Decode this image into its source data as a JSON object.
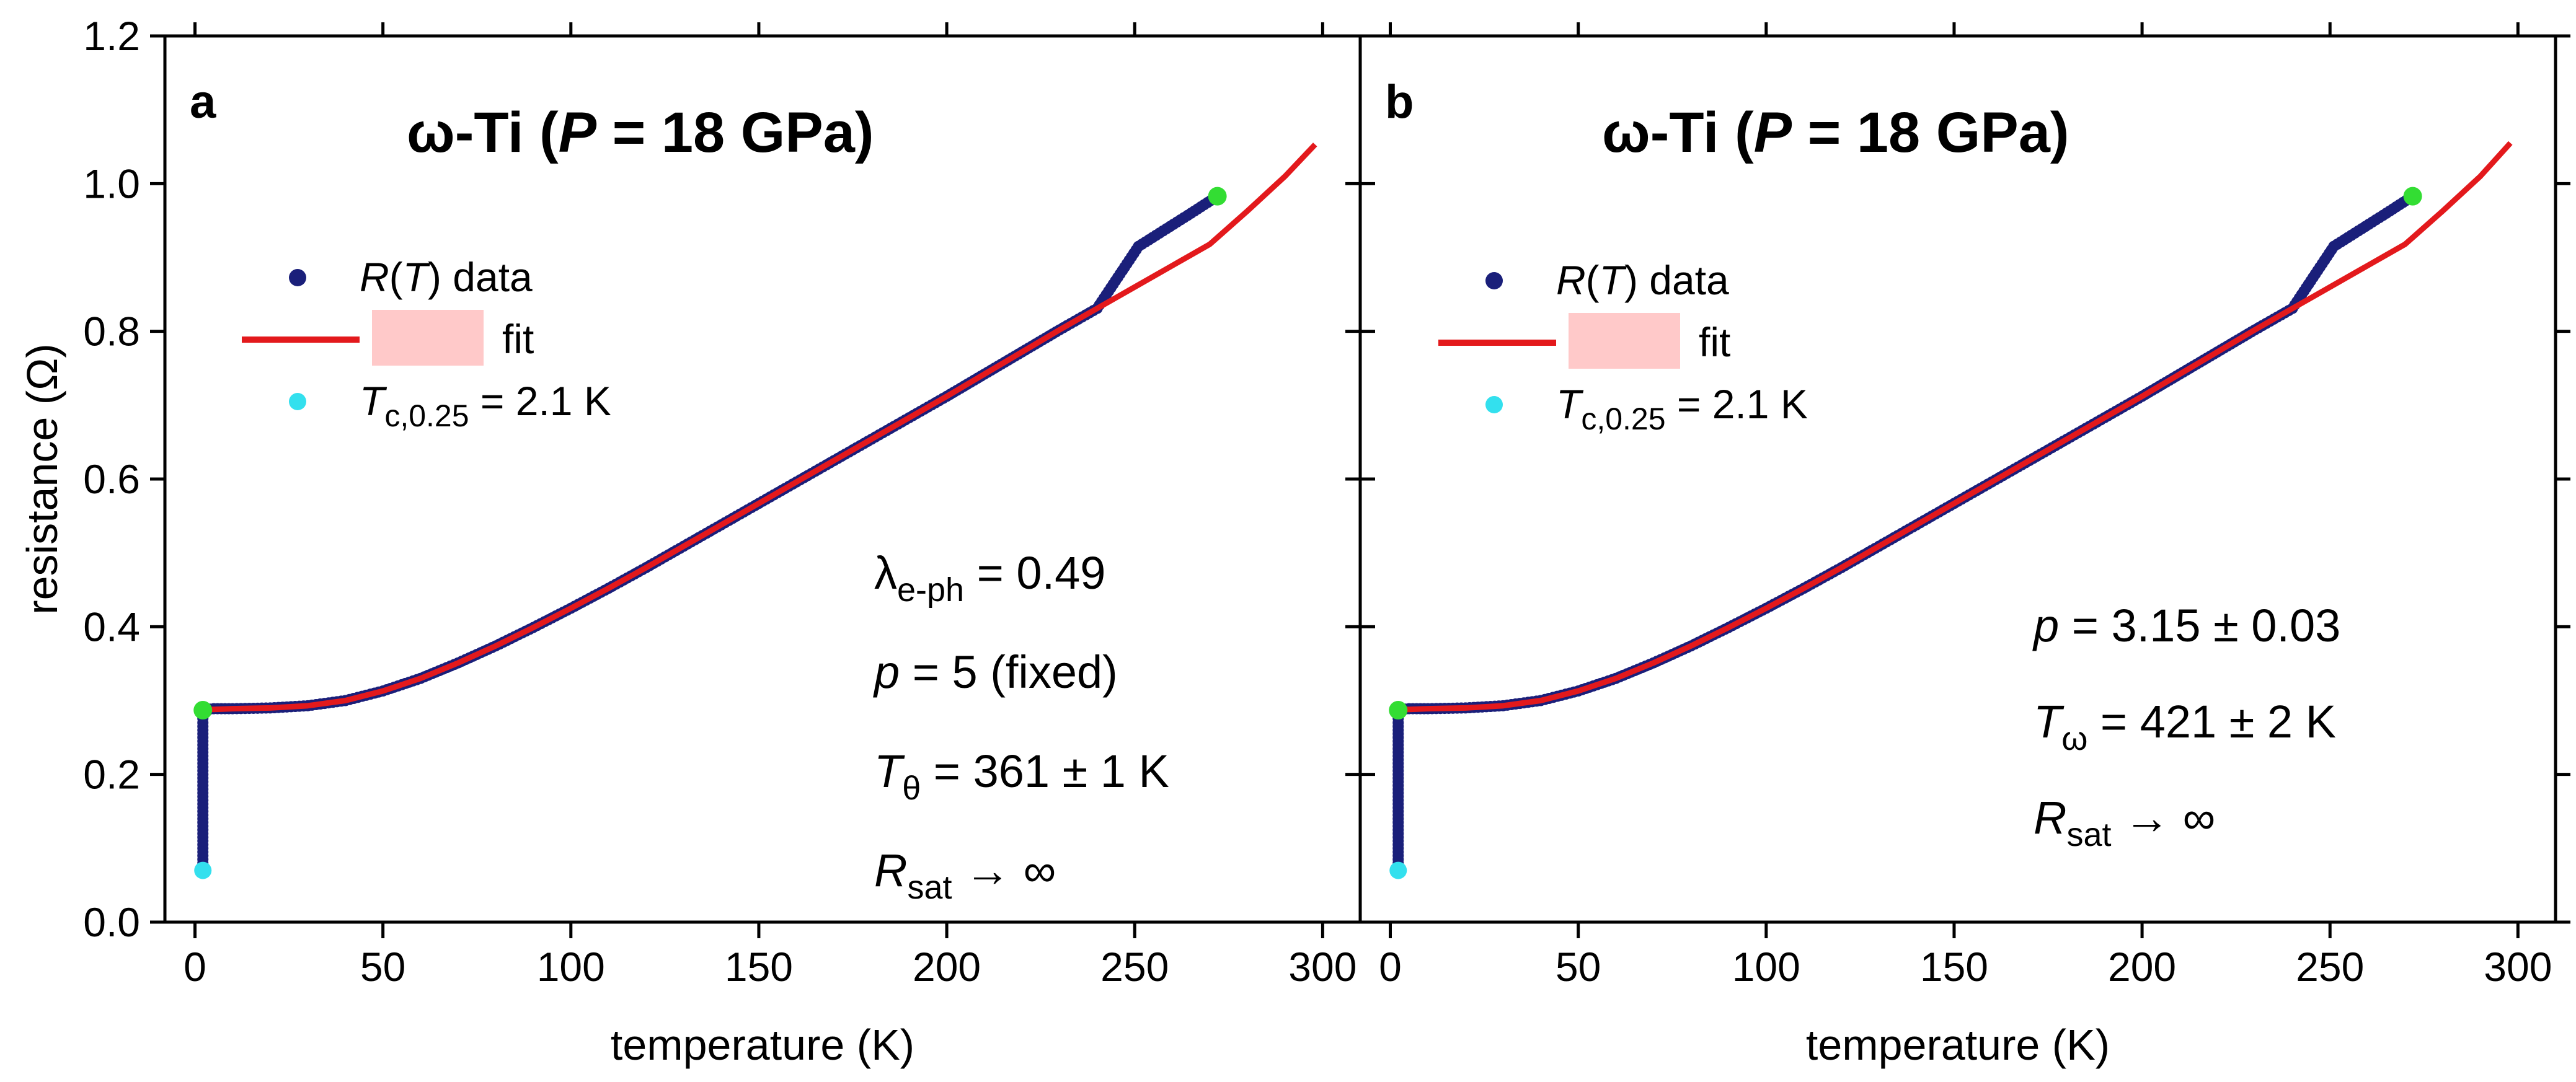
{
  "chart_data": [
    {
      "type": "scatter",
      "panel": "a",
      "title": "ω-Ti (P = 18 GPa)",
      "title_parts": [
        "ω-Ti (",
        "P",
        " = 18 GPa)"
      ],
      "xlabel": "temperature (K)",
      "ylabel": "resistance (Ω)",
      "xlim": [
        -8,
        310
      ],
      "ylim": [
        0.0,
        1.2
      ],
      "xticks": [
        0,
        50,
        100,
        150,
        200,
        250,
        300
      ],
      "xtick_labels": [
        "0",
        "50",
        "100",
        "150",
        "200",
        "250",
        "300"
      ],
      "yticks": [
        0.0,
        0.2,
        0.4,
        0.6,
        0.8,
        1.0,
        1.2
      ],
      "ytick_labels": [
        "0.0",
        "0.2",
        "0.4",
        "0.6",
        "0.8",
        "1.0",
        "1.2"
      ],
      "grid": false,
      "legend_position": "upper-left",
      "legend": [
        {
          "kind": "marker",
          "italic": "R",
          "text": "(T) data",
          "italic2": "T",
          "color": "#1a1f7a"
        },
        {
          "kind": "line",
          "text": "fit",
          "color": "#e3191c",
          "swatch_color": "#ffc9c9"
        },
        {
          "kind": "marker",
          "italic": "T",
          "subscript": "c,0.25",
          "text": " = 2.1 K",
          "color": "#33e0ee"
        }
      ],
      "annotations": [
        {
          "main": "λ",
          "sub": "e-ph",
          "rest": " = 0.49"
        },
        {
          "main": "p",
          "italic": true,
          "sub": "",
          "rest": " = 5 (fixed)"
        },
        {
          "main": "T",
          "italic": true,
          "sub": "θ",
          "rest": " = 361 ± 1 K"
        },
        {
          "main": "R",
          "italic": true,
          "sub": "sat",
          "rest": " → ∞"
        }
      ],
      "series": [
        {
          "name": "R(T) data",
          "color": "#1a1f7a",
          "x": [
            2.1,
            2.1,
            2.1,
            2.1,
            2.1,
            2.1,
            2.1,
            2.1,
            2.1,
            3,
            5,
            10,
            20,
            30,
            40,
            50,
            60,
            70,
            80,
            90,
            100,
            110,
            120,
            130,
            140,
            150,
            160,
            170,
            180,
            190,
            200,
            210,
            220,
            230,
            240,
            251,
            265,
            272
          ],
          "y": [
            0.07,
            0.1,
            0.13,
            0.16,
            0.19,
            0.22,
            0.25,
            0.27,
            0.287,
            0.288,
            0.289,
            0.289,
            0.29,
            0.293,
            0.3,
            0.313,
            0.33,
            0.351,
            0.374,
            0.399,
            0.425,
            0.452,
            0.48,
            0.509,
            0.538,
            0.567,
            0.596,
            0.625,
            0.654,
            0.683,
            0.712,
            0.742,
            0.772,
            0.802,
            0.831,
            0.915,
            0.96,
            0.983
          ]
        },
        {
          "name": "fit",
          "color": "#e3191c",
          "x": [
            2,
            5,
            10,
            20,
            30,
            40,
            50,
            60,
            70,
            80,
            90,
            100,
            110,
            120,
            130,
            140,
            150,
            160,
            170,
            180,
            190,
            200,
            210,
            220,
            230,
            240,
            250,
            260,
            270,
            280,
            290,
            298
          ],
          "y": [
            0.288,
            0.288,
            0.289,
            0.29,
            0.293,
            0.3,
            0.313,
            0.33,
            0.351,
            0.374,
            0.399,
            0.425,
            0.452,
            0.48,
            0.509,
            0.538,
            0.567,
            0.596,
            0.625,
            0.654,
            0.683,
            0.712,
            0.742,
            0.772,
            0.802,
            0.831,
            0.86,
            0.889,
            0.918,
            0.963,
            1.01,
            1.053
          ]
        },
        {
          "name": "Tc,0.25 = 2.1 K",
          "color": "#33e0ee",
          "x": [
            2.1
          ],
          "y": [
            0.07
          ]
        },
        {
          "color": "#33dd33",
          "x": [
            2.1,
            272
          ],
          "y": [
            0.287,
            0.983
          ]
        }
      ]
    },
    {
      "type": "scatter",
      "panel": "b",
      "title": "ω-Ti (P = 18 GPa)",
      "title_parts": [
        "ω-Ti (",
        "P",
        " = 18 GPa)"
      ],
      "xlabel": "temperature (K)",
      "ylabel": "",
      "xlim": [
        -8,
        310
      ],
      "ylim": [
        0.0,
        1.2
      ],
      "xticks": [
        0,
        50,
        100,
        150,
        200,
        250,
        300
      ],
      "xtick_labels": [
        "0",
        "50",
        "100",
        "150",
        "200",
        "250",
        "300"
      ],
      "yticks": [
        0.0,
        0.2,
        0.4,
        0.6,
        0.8,
        1.0,
        1.2
      ],
      "ytick_labels": [],
      "grid": false,
      "legend_position": "upper-left",
      "legend": [
        {
          "kind": "marker",
          "italic": "R",
          "text": "(T) data",
          "italic2": "T",
          "color": "#1a1f7a"
        },
        {
          "kind": "line",
          "text": "fit",
          "color": "#e3191c",
          "swatch_color": "#ffc9c9"
        },
        {
          "kind": "marker",
          "italic": "T",
          "subscript": "c,0.25",
          "text": " = 2.1 K",
          "color": "#33e0ee"
        }
      ],
      "annotations": [
        {
          "main": "p",
          "italic": true,
          "sub": "",
          "rest": " = 3.15  ± 0.03"
        },
        {
          "main": "T",
          "italic": true,
          "sub": "ω",
          "rest": " = 421 ± 2 K"
        },
        {
          "main": "R",
          "italic": true,
          "sub": "sat",
          "rest": " → ∞"
        }
      ],
      "series": [
        {
          "name": "R(T) data",
          "color": "#1a1f7a",
          "x": [
            2.1,
            2.1,
            2.1,
            2.1,
            2.1,
            2.1,
            2.1,
            2.1,
            2.1,
            3,
            5,
            10,
            20,
            30,
            40,
            50,
            60,
            70,
            80,
            90,
            100,
            110,
            120,
            130,
            140,
            150,
            160,
            170,
            180,
            190,
            200,
            210,
            220,
            230,
            240,
            251,
            265,
            272
          ],
          "y": [
            0.07,
            0.1,
            0.13,
            0.16,
            0.19,
            0.22,
            0.25,
            0.27,
            0.287,
            0.288,
            0.289,
            0.289,
            0.29,
            0.293,
            0.3,
            0.313,
            0.33,
            0.351,
            0.374,
            0.399,
            0.425,
            0.452,
            0.48,
            0.509,
            0.538,
            0.567,
            0.596,
            0.625,
            0.654,
            0.683,
            0.712,
            0.742,
            0.772,
            0.802,
            0.831,
            0.915,
            0.96,
            0.983
          ]
        },
        {
          "name": "fit",
          "color": "#e3191c",
          "x": [
            2,
            5,
            10,
            20,
            30,
            40,
            50,
            60,
            70,
            80,
            90,
            100,
            110,
            120,
            130,
            140,
            150,
            160,
            170,
            180,
            190,
            200,
            210,
            220,
            230,
            240,
            250,
            260,
            270,
            280,
            290,
            298
          ],
          "y": [
            0.288,
            0.288,
            0.289,
            0.29,
            0.293,
            0.3,
            0.313,
            0.33,
            0.351,
            0.374,
            0.399,
            0.425,
            0.452,
            0.48,
            0.509,
            0.538,
            0.567,
            0.596,
            0.625,
            0.654,
            0.683,
            0.712,
            0.742,
            0.772,
            0.802,
            0.831,
            0.86,
            0.889,
            0.918,
            0.963,
            1.01,
            1.055
          ]
        },
        {
          "name": "Tc,0.25 = 2.1 K",
          "color": "#33e0ee",
          "x": [
            2.1
          ],
          "y": [
            0.07
          ]
        },
        {
          "color": "#33dd33",
          "x": [
            2.1,
            272
          ],
          "y": [
            0.287,
            0.983
          ]
        }
      ]
    }
  ]
}
